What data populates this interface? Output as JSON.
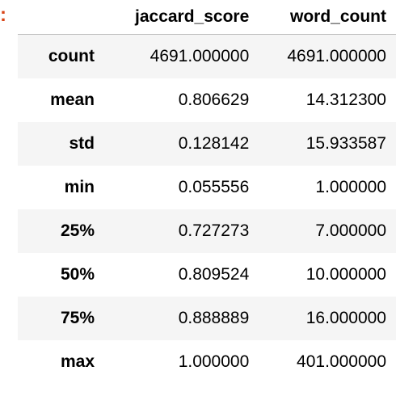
{
  "prompt": {
    "marker": ":"
  },
  "table": {
    "columns": [
      "jaccard_score",
      "word_count"
    ],
    "rows": [
      {
        "label": "count",
        "values": [
          "4691.000000",
          "4691.000000"
        ]
      },
      {
        "label": "mean",
        "values": [
          "0.806629",
          "14.312300"
        ]
      },
      {
        "label": "std",
        "values": [
          "0.128142",
          "15.933587"
        ]
      },
      {
        "label": "min",
        "values": [
          "0.055556",
          "1.000000"
        ]
      },
      {
        "label": "25%",
        "values": [
          "0.727273",
          "7.000000"
        ]
      },
      {
        "label": "50%",
        "values": [
          "0.809524",
          "10.000000"
        ]
      },
      {
        "label": "75%",
        "values": [
          "0.888889",
          "16.000000"
        ]
      },
      {
        "label": "max",
        "values": [
          "1.000000",
          "401.000000"
        ]
      }
    ]
  },
  "colors": {
    "prompt_marker": "#d84315",
    "stripe": "#f5f5f5",
    "header_rule": "#bdbdbd"
  }
}
